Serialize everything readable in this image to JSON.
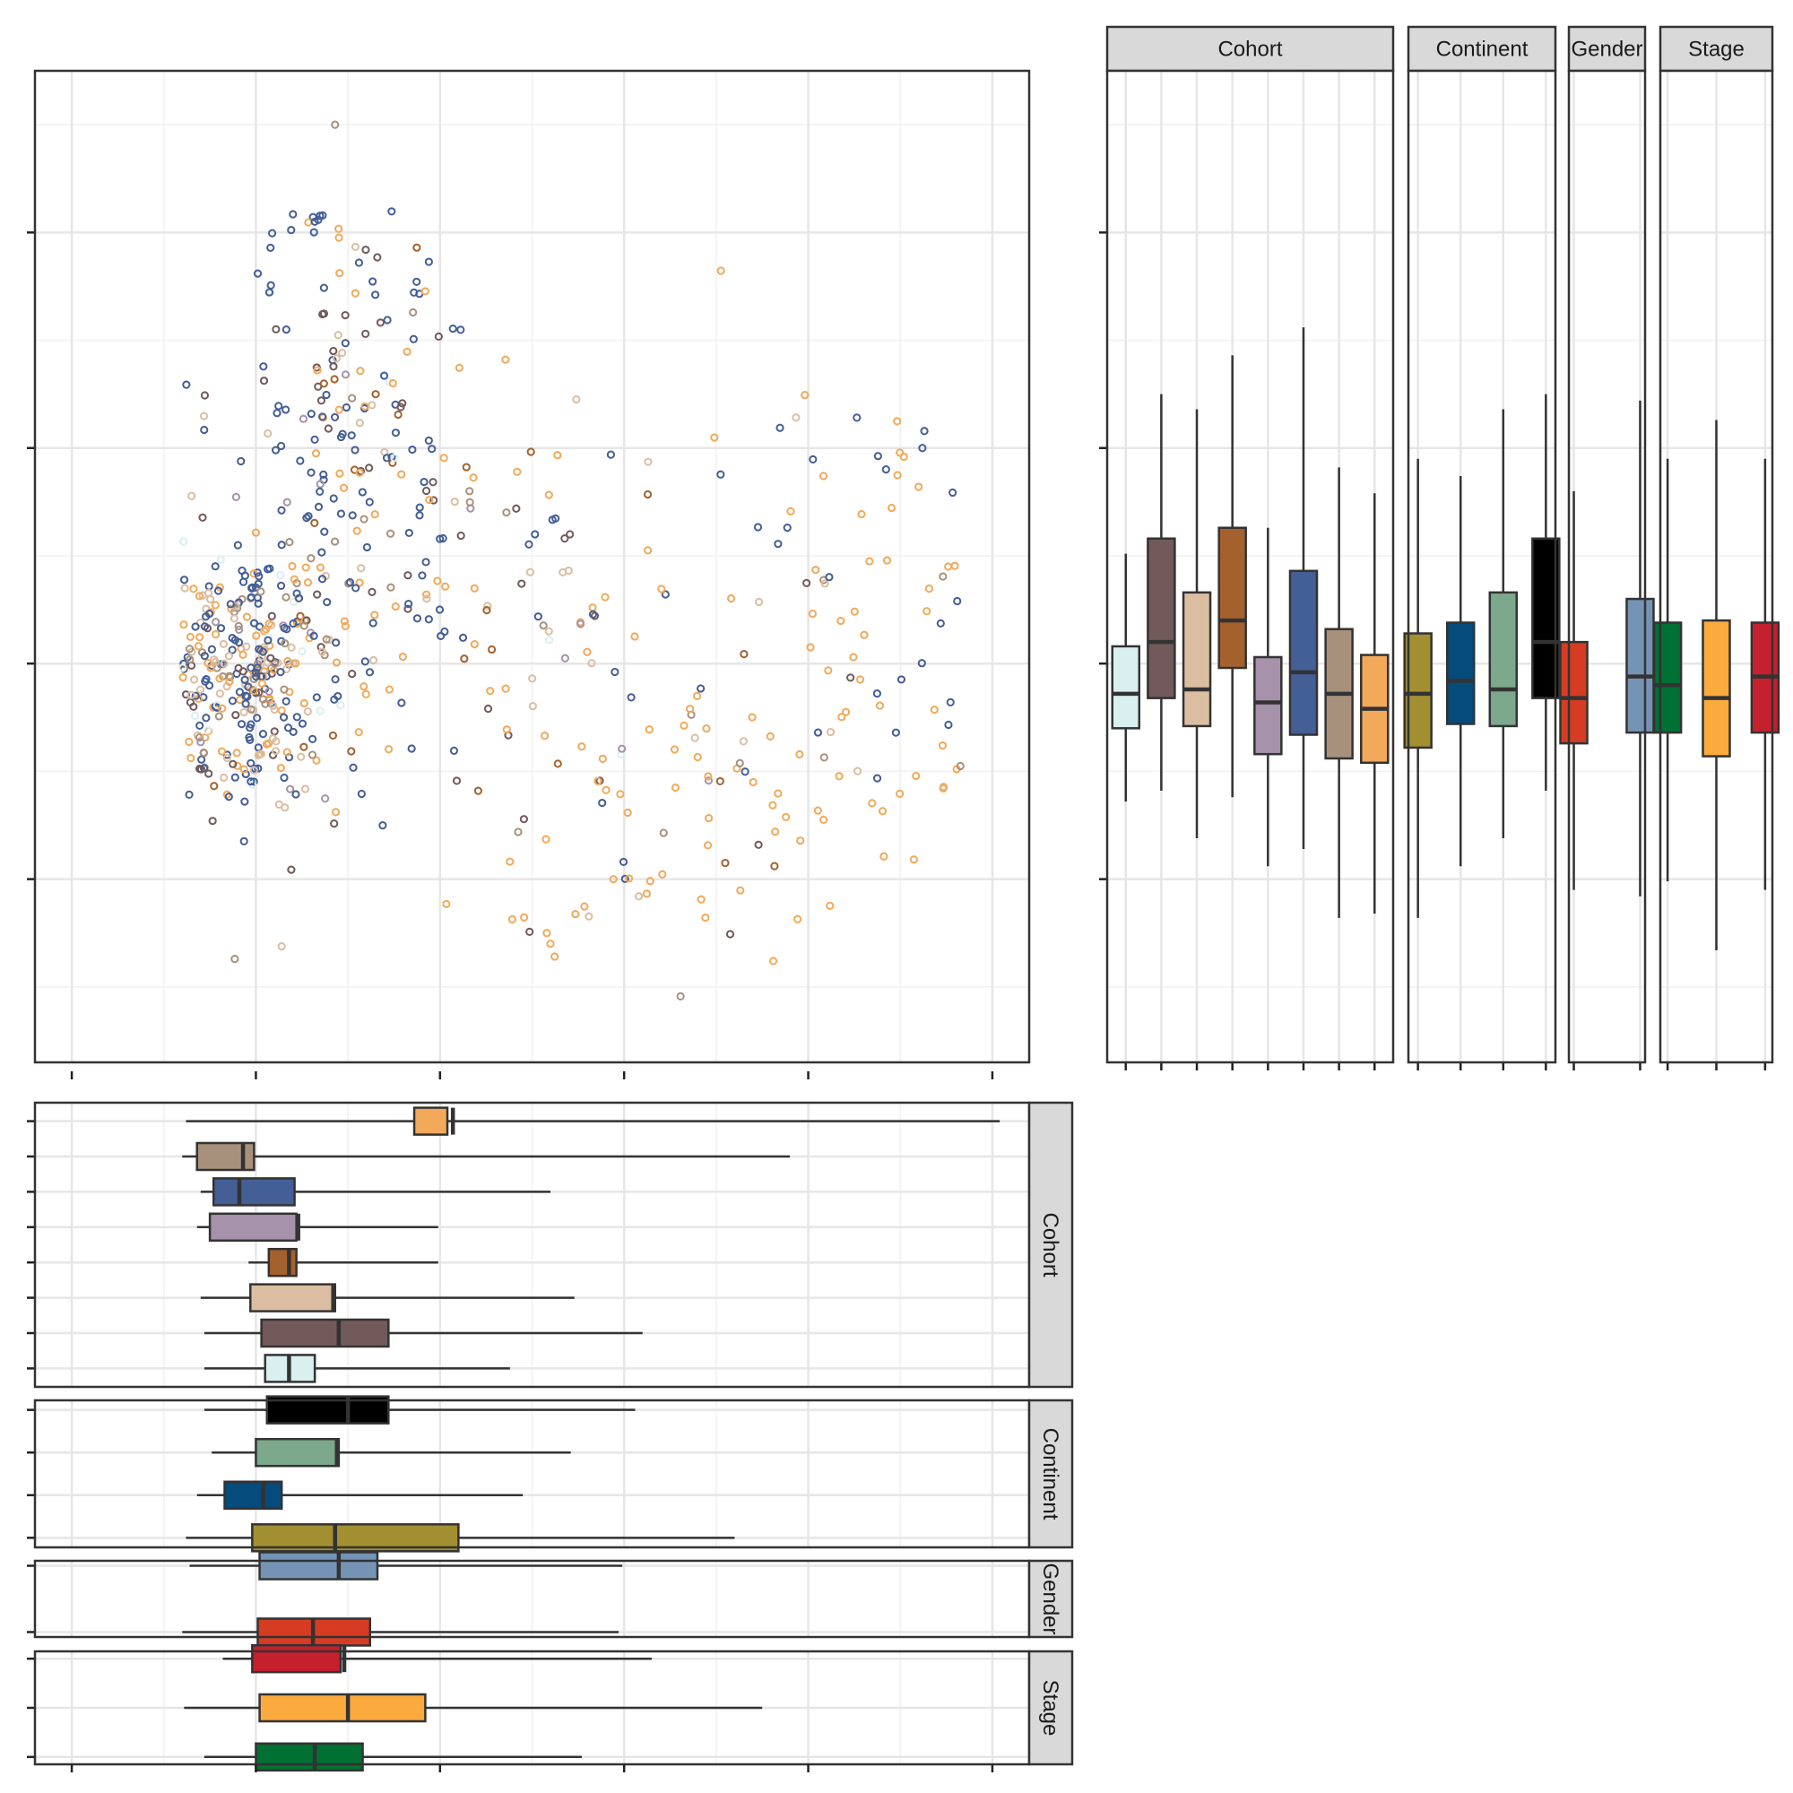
{
  "chart_data": {
    "type": "scatter",
    "title": "",
    "xlabel": "",
    "ylabel": "",
    "xlim": [
      -0.2,
      5.2
    ],
    "ylim": [
      -1.85,
      2.75
    ],
    "x_major_ticks": [
      0,
      1,
      2,
      3,
      4,
      5
    ],
    "y_major_ticks": [
      -1,
      0,
      1,
      2
    ],
    "tick_labels_shown": false,
    "grid": true,
    "legend": "none",
    "facet_titles": {
      "cohort": "Cohort",
      "continent": "Continent",
      "gender": "Gender",
      "stage": "Stage"
    },
    "groups": {
      "cohort": [
        {
          "color": "#d9eff0",
          "x_box": [
            1.05,
            1.18,
            1.32,
            0.72,
            2.38
          ],
          "y_box": [
            -0.3,
            -0.14,
            0.08,
            -0.64,
            0.51
          ]
        },
        {
          "color": "#735a5a",
          "x_box": [
            1.03,
            1.45,
            1.72,
            0.72,
            3.1
          ],
          "y_box": [
            -0.16,
            0.1,
            0.58,
            -0.59,
            1.25
          ]
        },
        {
          "color": "#dbbea2",
          "x_box": [
            0.97,
            1.42,
            1.43,
            0.7,
            2.73
          ],
          "y_box": [
            -0.29,
            -0.12,
            0.33,
            -0.81,
            1.18
          ]
        },
        {
          "color": "#a5612d",
          "x_box": [
            1.07,
            1.18,
            1.22,
            0.96,
            1.99
          ],
          "y_box": [
            -0.02,
            0.2,
            0.63,
            -0.62,
            1.43
          ]
        },
        {
          "color": "#a692ab",
          "x_box": [
            0.75,
            1.23,
            1.22,
            0.68,
            1.99
          ],
          "y_box": [
            -0.42,
            -0.18,
            0.03,
            -0.94,
            0.63
          ]
        },
        {
          "color": "#445e96",
          "x_box": [
            0.77,
            0.91,
            1.21,
            0.7,
            2.6
          ],
          "y_box": [
            -0.33,
            -0.04,
            0.43,
            -0.86,
            1.56
          ]
        },
        {
          "color": "#a8917c",
          "x_box": [
            0.68,
            0.93,
            0.99,
            0.6,
            3.9
          ],
          "y_box": [
            -0.44,
            -0.14,
            0.16,
            -1.18,
            0.91
          ]
        },
        {
          "color": "#f2a95a",
          "x_box": [
            2.04,
            2.07,
            1.86,
            0.62,
            5.04
          ],
          "y_box": [
            -0.46,
            -0.21,
            0.04,
            -1.16,
            0.79
          ]
        }
      ],
      "continent": [
        {
          "color": "#a28f32",
          "x_box": [
            0.98,
            1.43,
            2.1,
            0.62,
            3.6
          ],
          "y_box": [
            -0.39,
            -0.14,
            0.14,
            -1.18,
            0.95
          ]
        },
        {
          "color": "#054b7c",
          "x_box": [
            0.83,
            1.04,
            1.14,
            0.68,
            2.45
          ],
          "y_box": [
            -0.28,
            -0.08,
            0.19,
            -0.94,
            0.87
          ]
        },
        {
          "color": "#7ca88c",
          "x_box": [
            1.0,
            1.44,
            1.45,
            0.76,
            2.71
          ],
          "y_box": [
            -0.29,
            -0.12,
            0.33,
            -0.81,
            1.18
          ]
        },
        {
          "color": "#000000",
          "x_box": [
            1.06,
            1.5,
            1.72,
            0.72,
            3.06
          ],
          "y_box": [
            -0.16,
            0.1,
            0.58,
            -0.59,
            1.25
          ]
        }
      ],
      "gender": [
        {
          "color": "#d63c23",
          "x_box": [
            1.01,
            1.31,
            1.62,
            0.6,
            2.97
          ],
          "y_box": [
            -0.37,
            -0.16,
            0.1,
            -1.05,
            0.8
          ]
        },
        {
          "color": "#7594b5",
          "x_box": [
            1.02,
            1.45,
            1.66,
            0.64,
            2.99
          ],
          "y_box": [
            -0.32,
            -0.06,
            0.3,
            -1.08,
            1.22
          ]
        }
      ],
      "stage": [
        {
          "color": "#007033",
          "x_box": [
            1.0,
            1.32,
            1.58,
            0.72,
            2.77
          ],
          "y_box": [
            -0.32,
            -0.1,
            0.19,
            -1.01,
            0.95
          ]
        },
        {
          "color": "#fbaa3e",
          "x_box": [
            1.02,
            1.5,
            1.92,
            0.61,
            3.75
          ],
          "y_box": [
            -0.43,
            -0.16,
            0.2,
            -1.33,
            1.13
          ]
        },
        {
          "color": "#c4202d",
          "x_box": [
            0.98,
            1.48,
            1.46,
            0.82,
            3.15
          ],
          "y_box": [
            -0.32,
            -0.06,
            0.19,
            -1.05,
            0.95
          ]
        }
      ]
    },
    "box_stat_order": [
      "q1",
      "median",
      "q3",
      "whisker_low",
      "whisker_high"
    ],
    "scatter_clusters": [
      {
        "cx": 0.95,
        "cy": -0.05,
        "sx": 0.22,
        "sy": 0.35,
        "n": 320,
        "weights": [
          0.05,
          0.08,
          0.15,
          0.03,
          0.04,
          0.35,
          0.1,
          0.2
        ]
      },
      {
        "cx": 1.5,
        "cy": 1.2,
        "sx": 0.3,
        "sy": 0.55,
        "n": 140,
        "weights": [
          0.02,
          0.15,
          0.08,
          0.08,
          0.04,
          0.45,
          0.05,
          0.13
        ]
      },
      {
        "cx": 2.2,
        "cy": 0.3,
        "sx": 0.8,
        "sy": 0.6,
        "n": 160,
        "weights": [
          0.02,
          0.14,
          0.08,
          0.05,
          0.03,
          0.3,
          0.08,
          0.3
        ]
      },
      {
        "cx": 3.9,
        "cy": -0.4,
        "sx": 0.6,
        "sy": 0.3,
        "n": 70,
        "weights": [
          0.0,
          0.05,
          0.03,
          0.02,
          0.0,
          0.2,
          0.05,
          0.65
        ]
      },
      {
        "cx": 2.8,
        "cy": -1.05,
        "sx": 0.5,
        "sy": 0.25,
        "n": 28,
        "weights": [
          0.0,
          0.1,
          0.05,
          0.0,
          0.0,
          0.05,
          0.05,
          0.75
        ]
      },
      {
        "cx": 4.4,
        "cy": 0.65,
        "sx": 0.3,
        "sy": 0.4,
        "n": 30,
        "weights": [
          0.0,
          0.05,
          0.05,
          0.0,
          0.0,
          0.35,
          0.0,
          0.55
        ]
      }
    ],
    "scatter_highlights": [
      {
        "x": 1.32,
        "y": 2.05,
        "cohort_index": 5
      },
      {
        "x": 1.56,
        "y": 1.86,
        "cohort_index": 5
      },
      {
        "x": 1.43,
        "y": 2.5,
        "cohort_index": 6
      },
      {
        "x": 4.62,
        "y": 1.0,
        "cohort_index": 5
      },
      {
        "x": 4.76,
        "y": 0.45,
        "cohort_index": 7
      },
      {
        "x": 4.73,
        "y": -0.38,
        "cohort_index": 7
      },
      {
        "x": 2.58,
        "y": -1.25,
        "cohort_index": 7
      },
      {
        "x": 2.6,
        "y": -1.3,
        "cohort_index": 7
      }
    ],
    "scatter_seed": 20240501
  }
}
